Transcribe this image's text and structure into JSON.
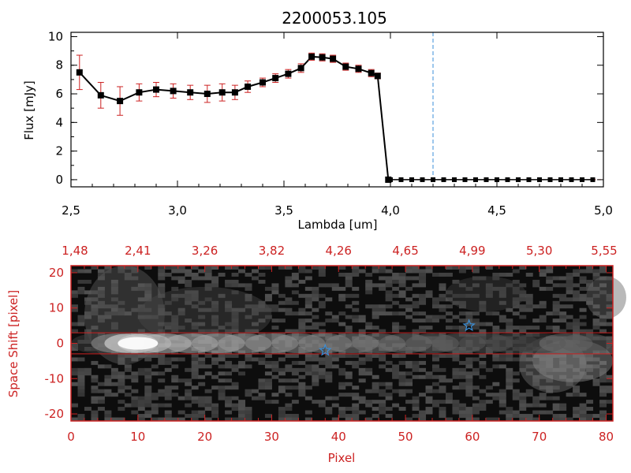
{
  "chart_data": [
    {
      "type": "line",
      "title": "2200053.105",
      "xlabel": "Lambda [um]",
      "ylabel": "Flux [mJy]",
      "xlim": [
        2.5,
        5.0
      ],
      "ylim": [
        -0.5,
        10.3
      ],
      "xticks": [
        "2.5",
        "3.0",
        "3.5",
        "4.0",
        "4.5",
        "5.0"
      ],
      "yticks": [
        "0",
        "2",
        "4",
        "6",
        "8",
        "10"
      ],
      "vline_x": 4.2,
      "colors": {
        "line": "#000000",
        "marker": "#000000",
        "errorbar": "#cc2222",
        "vline": "#3b8fd8",
        "zero_line": "#cc2222"
      },
      "series": [
        {
          "x": [
            2.54,
            2.64,
            2.73,
            2.82,
            2.9,
            2.98,
            3.06,
            3.14,
            3.21,
            3.27,
            3.33,
            3.4,
            3.46,
            3.52,
            3.58,
            3.63,
            3.68,
            3.73,
            3.79,
            3.85,
            3.91,
            3.94,
            3.99
          ],
          "y": [
            7.5,
            5.9,
            5.5,
            6.1,
            6.3,
            6.2,
            6.1,
            6.0,
            6.1,
            6.1,
            6.5,
            6.8,
            7.1,
            7.4,
            7.8,
            8.6,
            8.55,
            8.45,
            7.9,
            7.75,
            7.45,
            7.25,
            0.0
          ],
          "yerr": [
            1.2,
            0.9,
            1.0,
            0.6,
            0.5,
            0.5,
            0.5,
            0.6,
            0.6,
            0.5,
            0.4,
            0.3,
            0.3,
            0.3,
            0.3,
            0.25,
            0.25,
            0.25,
            0.25,
            0.25,
            0.25,
            0.2,
            0.0
          ]
        },
        {
          "x": [
            4.0,
            4.05,
            4.1,
            4.15,
            4.2,
            4.25,
            4.3,
            4.35,
            4.4,
            4.45,
            4.5,
            4.55,
            4.6,
            4.65,
            4.7,
            4.75,
            4.8,
            4.85,
            4.9,
            4.95
          ],
          "y": [
            0,
            0,
            0,
            0,
            0,
            0,
            0,
            0,
            0,
            0,
            0,
            0,
            0,
            0,
            0,
            0,
            0,
            0,
            0,
            0
          ]
        }
      ]
    },
    {
      "type": "heatmap",
      "xlabel": "Pixel",
      "ylabel": "Space Shift [pixel]",
      "xlim": [
        0,
        81
      ],
      "ylim": [
        -22,
        22
      ],
      "xticks": [
        "0",
        "10",
        "20",
        "30",
        "40",
        "50",
        "60",
        "70",
        "80"
      ],
      "yticks": [
        "-20",
        "-10",
        "0",
        "10",
        "20"
      ],
      "top_ticks": [
        "1.48",
        "2.41",
        "3.26",
        "3.82",
        "4.26",
        "4.65",
        "4.99",
        "5.30",
        "5.55"
      ],
      "aperture_lines_y": [
        3,
        -3
      ],
      "stars": [
        {
          "x": 38,
          "y": -2
        },
        {
          "x": 59.5,
          "y": 5
        }
      ],
      "colors": {
        "axes": "#cc2222",
        "aperture": "#cc2222",
        "star": "#3b8fd8"
      }
    }
  ]
}
